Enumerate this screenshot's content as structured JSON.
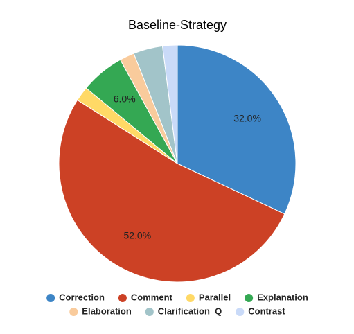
{
  "chart_data": {
    "type": "pie",
    "title": "Baseline-Strategy",
    "categories": [
      "Correction",
      "Comment",
      "Parallel",
      "Explanation",
      "Elaboration",
      "Clarification_Q",
      "Contrast"
    ],
    "values": [
      32,
      52,
      2,
      6,
      2,
      4,
      2
    ],
    "value_labels": [
      "32.0%",
      "52.0%",
      null,
      "6.0%",
      null,
      null,
      null
    ],
    "colors": [
      "#3d85c6",
      "#cc4125",
      "#ffd966",
      "#34a853",
      "#f9cb9c",
      "#a2c4c9",
      "#c9daf8"
    ],
    "legend": "bottom"
  }
}
